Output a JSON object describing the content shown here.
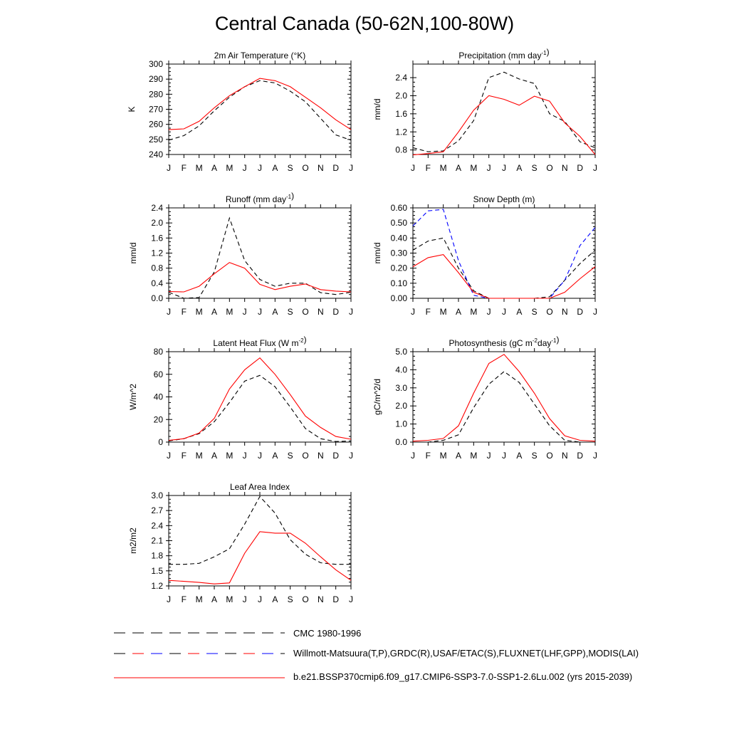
{
  "title": "Central Canada (50-62N,100-80W)",
  "months": [
    "J",
    "F",
    "M",
    "A",
    "M",
    "J",
    "J",
    "A",
    "S",
    "O",
    "N",
    "D",
    "J"
  ],
  "colors": {
    "model": "#ff0000",
    "cmc": "#000000",
    "obs": "#0000ff"
  },
  "legend": [
    {
      "label": "CMC 1980-1996",
      "style": "cmc"
    },
    {
      "label": "Willmott-Matsuura(T,P),GRDC(R),USAF/ETAC(S),FLUXNET(LHF,GPP),MODIS(LAI)",
      "style": "obs"
    },
    {
      "label": "b.e21.BSSP370cmip6.f09_g17.CMIP6-SSP3-7.0-SSP1-2.6Lu.002 (yrs 2015-2039)",
      "style": "model"
    }
  ],
  "chart_data": [
    {
      "type": "line",
      "title": "2m Air Temperature (°K)",
      "ylabel": "K",
      "ylim": [
        240,
        300
      ],
      "yticks": [
        240,
        250,
        260,
        270,
        280,
        290,
        300
      ],
      "ytick_labels": [
        "240",
        "250",
        "260",
        "270",
        "280",
        "290",
        "300"
      ],
      "series": [
        {
          "style": "model",
          "values": [
            256.5,
            257,
            262,
            271,
            279,
            285,
            290.5,
            289,
            285,
            278,
            271,
            263,
            256.5
          ]
        },
        {
          "style": "cmc",
          "values": [
            249.5,
            252.5,
            259,
            269,
            278,
            285,
            289,
            287.5,
            282,
            275,
            264,
            253,
            249.5
          ]
        }
      ]
    },
    {
      "type": "line",
      "title": "Precipitation (mm day-1)",
      "ylabel": "mm/d",
      "ylim": [
        0.7,
        2.7
      ],
      "yticks": [
        0.8,
        1.2,
        1.6,
        2.0,
        2.4
      ],
      "ytick_labels": [
        "0.8",
        "1.2",
        "1.6",
        "2.0",
        "2.4"
      ],
      "series": [
        {
          "style": "model",
          "values": [
            0.69,
            0.72,
            0.76,
            1.2,
            1.68,
            2.0,
            1.92,
            1.79,
            1.99,
            1.88,
            1.4,
            1.1,
            0.7
          ]
        },
        {
          "style": "cmc",
          "values": [
            0.85,
            0.76,
            0.78,
            1.0,
            1.45,
            2.4,
            2.52,
            2.37,
            2.27,
            1.6,
            1.43,
            0.98,
            0.85
          ]
        }
      ]
    },
    {
      "type": "line",
      "title": "Runoff (mm day-1)",
      "ylabel": "mm/d",
      "ylim": [
        0,
        2.4
      ],
      "yticks": [
        0,
        0.4,
        0.8,
        1.2,
        1.6,
        2.0,
        2.4
      ],
      "ytick_labels": [
        "0.0",
        "0.4",
        "0.8",
        "1.2",
        "1.6",
        "2.0",
        "2.4"
      ],
      "series": [
        {
          "style": "model",
          "values": [
            0.18,
            0.17,
            0.32,
            0.65,
            0.95,
            0.8,
            0.37,
            0.23,
            0.32,
            0.38,
            0.23,
            0.19,
            0.17
          ]
        },
        {
          "style": "cmc",
          "values": [
            0.16,
            0.0,
            0.02,
            0.7,
            2.13,
            1.0,
            0.5,
            0.32,
            0.4,
            0.4,
            0.15,
            0.1,
            0.16
          ]
        }
      ]
    },
    {
      "type": "line",
      "title": "Snow Depth (m)",
      "ylabel": "mm/d",
      "ylim": [
        0,
        0.6
      ],
      "yticks": [
        0,
        0.1,
        0.2,
        0.3,
        0.4,
        0.5,
        0.6
      ],
      "ytick_labels": [
        "0.00",
        "0.10",
        "0.20",
        "0.30",
        "0.40",
        "0.50",
        "0.60"
      ],
      "series": [
        {
          "style": "model",
          "values": [
            0.21,
            0.27,
            0.29,
            0.17,
            0.04,
            0.0,
            0.0,
            0.0,
            0.0,
            0.0,
            0.04,
            0.13,
            0.21
          ]
        },
        {
          "style": "cmc",
          "values": [
            0.32,
            0.38,
            0.4,
            0.2,
            0.05,
            0.0,
            0.0,
            0.0,
            0.0,
            0.01,
            0.12,
            0.23,
            0.32
          ]
        },
        {
          "style": "obs",
          "values": [
            0.48,
            0.58,
            0.59,
            0.25,
            0.02,
            0.0,
            0.0,
            0.0,
            0.0,
            0.0,
            0.12,
            0.35,
            0.47
          ]
        }
      ]
    },
    {
      "type": "line",
      "title": "Latent Heat Flux (W m-2)",
      "ylabel": "W/m^2",
      "ylim": [
        0,
        80
      ],
      "yticks": [
        0,
        20,
        40,
        60,
        80
      ],
      "ytick_labels": [
        "0",
        "20",
        "40",
        "60",
        "80"
      ],
      "series": [
        {
          "style": "model",
          "values": [
            1.5,
            3,
            8,
            21,
            47,
            64,
            74.5,
            60,
            42,
            23,
            13,
            5,
            2.5
          ]
        },
        {
          "style": "cmc",
          "values": [
            1,
            3,
            7.5,
            18,
            35,
            54,
            59,
            49,
            31,
            12,
            3,
            0.5,
            1
          ]
        }
      ]
    },
    {
      "type": "line",
      "title": "Photosynthesis (gC m-2day-1)",
      "ylabel": "gC/m^2/d",
      "ylim": [
        0,
        5
      ],
      "yticks": [
        0,
        1,
        2,
        3,
        4,
        5
      ],
      "ytick_labels": [
        "0.0",
        "1.0",
        "2.0",
        "3.0",
        "4.0",
        "5.0"
      ],
      "series": [
        {
          "style": "model",
          "values": [
            0.05,
            0.1,
            0.2,
            0.9,
            2.7,
            4.35,
            4.85,
            3.9,
            2.7,
            1.3,
            0.35,
            0.1,
            0.05
          ]
        },
        {
          "style": "cmc",
          "values": [
            0.0,
            0.0,
            0.1,
            0.4,
            1.9,
            3.2,
            3.9,
            3.3,
            2.1,
            0.9,
            0.1,
            0.0,
            0.0
          ]
        }
      ]
    },
    {
      "type": "line",
      "title": "Leaf Area Index",
      "ylabel": "m2/m2",
      "ylim": [
        1.2,
        3.0
      ],
      "yticks": [
        1.2,
        1.5,
        1.8,
        2.1,
        2.4,
        2.7,
        3.0
      ],
      "ytick_labels": [
        "1.2",
        "1.5",
        "1.8",
        "2.1",
        "2.4",
        "2.7",
        "3.0"
      ],
      "series": [
        {
          "style": "model",
          "values": [
            1.31,
            1.29,
            1.27,
            1.24,
            1.26,
            1.85,
            2.28,
            2.25,
            2.25,
            2.05,
            1.78,
            1.52,
            1.31
          ]
        },
        {
          "style": "cmc",
          "values": [
            1.63,
            1.63,
            1.65,
            1.78,
            1.94,
            2.43,
            2.98,
            2.65,
            2.12,
            1.83,
            1.66,
            1.63,
            1.63
          ]
        }
      ]
    }
  ]
}
